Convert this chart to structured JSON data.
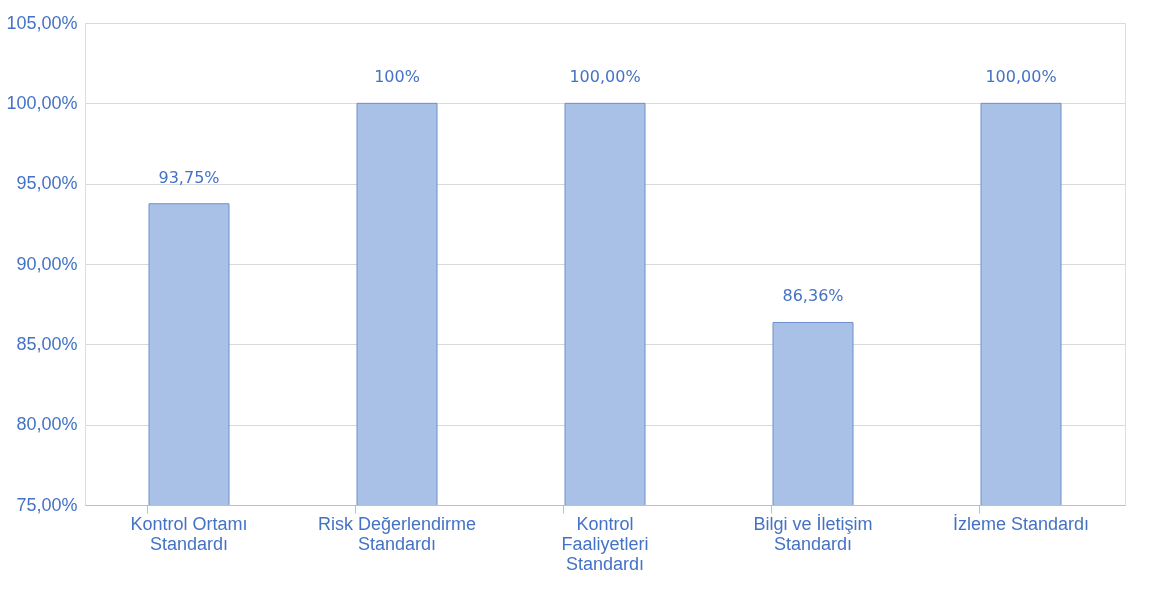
{
  "chart_data": {
    "type": "bar",
    "categories": [
      "Kontrol Ortamı Standardı",
      "Risk Değerlendirme Standardı",
      "Kontrol Faaliyetleri Standardı",
      "Bilgi ve İletişim Standardı",
      "İzleme Standardı"
    ],
    "values": [
      93.75,
      100,
      100,
      86.36,
      100
    ],
    "color": "#a9c1e6",
    "value_labels": [
      "93,75%",
      "100%",
      "100,00%",
      "86,36%",
      "100,00%"
    ],
    "ylim": [
      75,
      105
    ],
    "yticks": [
      {
        "value": 75,
        "label": "75,00%"
      },
      {
        "value": 80,
        "label": "80,00%"
      },
      {
        "value": 85,
        "label": "85,00%"
      },
      {
        "value": 90,
        "label": "90,00%"
      },
      {
        "value": 95,
        "label": "95,00%"
      },
      {
        "value": 100,
        "label": "100,00%"
      },
      {
        "value": 105,
        "label": "105,00%"
      }
    ],
    "grid": "y"
  }
}
